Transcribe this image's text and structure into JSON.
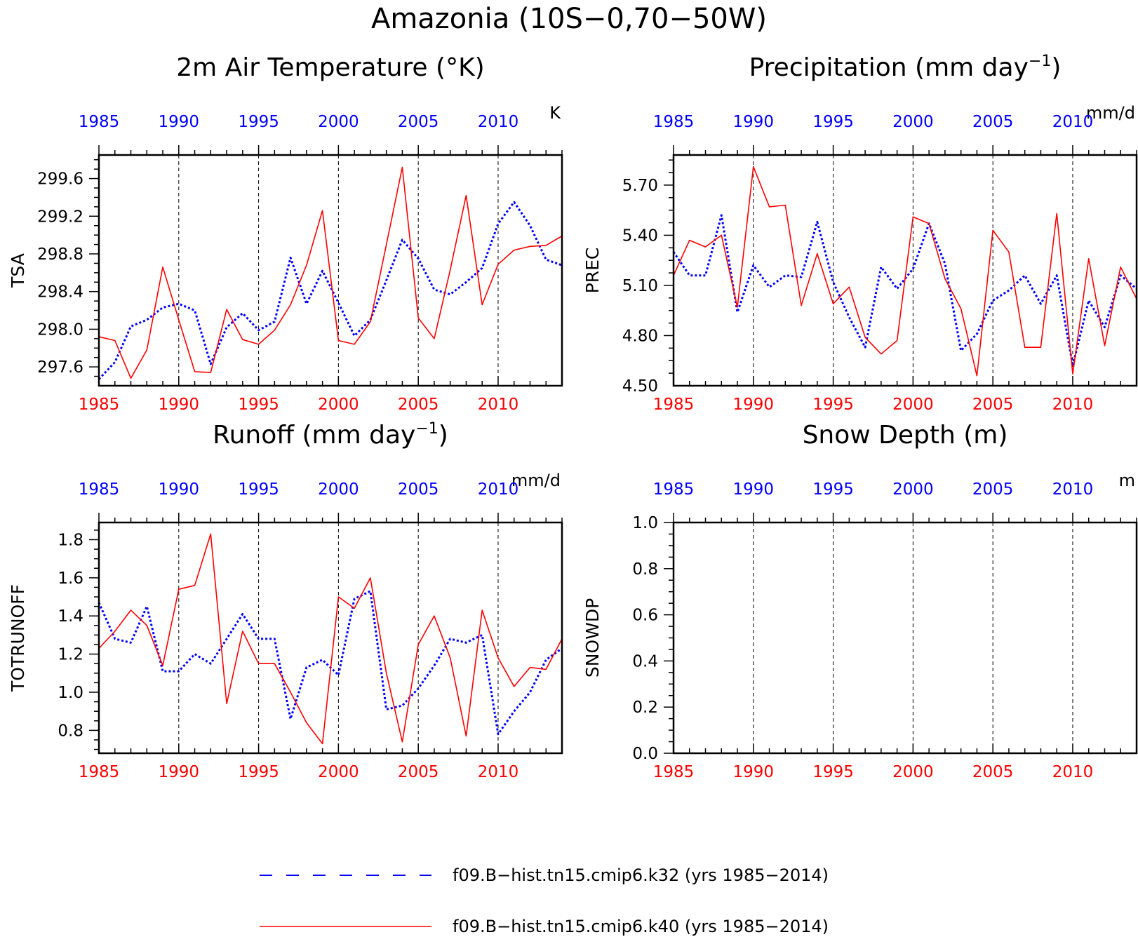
{
  "main_title": "Amazonia (10S−0,70−50W)",
  "colors": {
    "k32": "#0000ff",
    "k40": "#ff0000",
    "axis": "#000000"
  },
  "legend": [
    {
      "label": "f09.B−hist.tn15.cmip6.k32 (yrs 1985−2014)",
      "color": "#0000ff",
      "style": "dashed"
    },
    {
      "label": "f09.B−hist.tn15.cmip6.k40 (yrs 1985−2014)",
      "color": "#ff0000",
      "style": "solid"
    }
  ],
  "chart_data": [
    {
      "type": "line",
      "title": "2m Air Temperature (°K)",
      "ylabel": "TSA",
      "units": "K",
      "xlim": [
        1985,
        2014
      ],
      "ylim": [
        297.4,
        299.85
      ],
      "yticks": [
        297.6,
        298.0,
        298.4,
        298.8,
        299.2,
        299.6
      ],
      "yticklabels": [
        "297.6",
        "298.0",
        "298.4",
        "298.8",
        "299.2",
        "299.6"
      ],
      "xticks": [
        1985,
        1990,
        1995,
        2000,
        2005,
        2010
      ],
      "x": [
        1985,
        1986,
        1987,
        1988,
        1989,
        1990,
        1991,
        1992,
        1993,
        1994,
        1995,
        1996,
        1997,
        1998,
        1999,
        2000,
        2001,
        2002,
        2003,
        2004,
        2005,
        2006,
        2007,
        2008,
        2009,
        2010,
        2011,
        2012,
        2013,
        2014
      ],
      "series": [
        {
          "key": "k32",
          "values": [
            297.47,
            297.65,
            298.03,
            298.1,
            298.23,
            298.27,
            298.2,
            297.63,
            298.02,
            298.17,
            297.99,
            298.08,
            298.76,
            298.27,
            298.62,
            298.28,
            297.93,
            298.1,
            298.52,
            298.95,
            298.75,
            298.42,
            298.37,
            298.5,
            298.65,
            299.12,
            299.35,
            299.1,
            298.74,
            298.68
          ]
        },
        {
          "key": "k40",
          "values": [
            297.92,
            297.88,
            297.48,
            297.78,
            298.66,
            298.1,
            297.55,
            297.54,
            298.21,
            297.89,
            297.84,
            297.99,
            298.26,
            298.68,
            299.26,
            297.88,
            297.84,
            298.08,
            298.9,
            299.72,
            298.12,
            297.9,
            298.63,
            299.42,
            298.26,
            298.69,
            298.84,
            298.88,
            298.89,
            298.99
          ]
        }
      ]
    },
    {
      "type": "line",
      "title": "Precipitation (mm day",
      "title_sup": "−1",
      "title_end": ")",
      "ylabel": "PREC",
      "units": "mm/d",
      "xlim": [
        1985,
        2014
      ],
      "ylim": [
        4.5,
        5.88
      ],
      "yticks": [
        4.5,
        4.8,
        5.1,
        5.4,
        5.7
      ],
      "yticklabels": [
        "4.50",
        "4.80",
        "5.10",
        "5.40",
        "5.70"
      ],
      "xticks": [
        1985,
        1990,
        1995,
        2000,
        2005,
        2010
      ],
      "x": [
        1985,
        1986,
        1987,
        1988,
        1989,
        1990,
        1991,
        1992,
        1993,
        1994,
        1995,
        1996,
        1997,
        1998,
        1999,
        2000,
        2001,
        2002,
        2003,
        2004,
        2005,
        2006,
        2007,
        2008,
        2009,
        2010,
        2011,
        2012,
        2013,
        2014
      ],
      "series": [
        {
          "key": "k32",
          "values": [
            5.3,
            5.16,
            5.16,
            5.52,
            4.94,
            5.22,
            5.09,
            5.16,
            5.15,
            5.48,
            5.12,
            4.91,
            4.73,
            5.21,
            5.08,
            5.2,
            5.47,
            5.23,
            4.71,
            4.81,
            5.01,
            5.07,
            5.16,
            4.99,
            5.16,
            4.62,
            5.01,
            4.85,
            5.16,
            5.08
          ]
        },
        {
          "key": "k40",
          "values": [
            5.16,
            5.37,
            5.33,
            5.4,
            4.97,
            5.81,
            5.57,
            5.58,
            4.98,
            5.29,
            4.99,
            5.09,
            4.79,
            4.69,
            4.77,
            5.51,
            5.47,
            5.14,
            4.96,
            4.56,
            5.43,
            5.3,
            4.73,
            4.73,
            5.53,
            4.57,
            5.26,
            4.74,
            5.21,
            5.02
          ]
        }
      ]
    },
    {
      "type": "line",
      "title": "Runoff (mm day",
      "title_sup": "−1",
      "title_end": ")",
      "ylabel": "TOTRUNOFF",
      "units": "mm/d",
      "xlim": [
        1985,
        2014
      ],
      "ylim": [
        0.68,
        1.89
      ],
      "yticks": [
        0.8,
        1.0,
        1.2,
        1.4,
        1.6,
        1.8
      ],
      "yticklabels": [
        "0.8",
        "1.0",
        "1.2",
        "1.4",
        "1.6",
        "1.8"
      ],
      "xticks": [
        1985,
        1990,
        1995,
        2000,
        2005,
        2010
      ],
      "x": [
        1985,
        1986,
        1987,
        1988,
        1989,
        1990,
        1991,
        1992,
        1993,
        1994,
        1995,
        1996,
        1997,
        1998,
        1999,
        2000,
        2001,
        2002,
        2003,
        2004,
        2005,
        2006,
        2007,
        2008,
        2009,
        2010,
        2011,
        2012,
        2013,
        2014
      ],
      "series": [
        {
          "key": "k32",
          "values": [
            1.47,
            1.28,
            1.26,
            1.45,
            1.11,
            1.11,
            1.2,
            1.15,
            1.28,
            1.41,
            1.28,
            1.28,
            0.86,
            1.13,
            1.17,
            1.09,
            1.49,
            1.53,
            0.91,
            0.93,
            1.02,
            1.14,
            1.28,
            1.26,
            1.3,
            0.78,
            0.9,
            1.0,
            1.17,
            1.23
          ]
        },
        {
          "key": "k40",
          "values": [
            1.23,
            1.32,
            1.43,
            1.35,
            1.14,
            1.54,
            1.56,
            1.83,
            0.94,
            1.32,
            1.15,
            1.15,
            1.0,
            0.84,
            0.73,
            1.5,
            1.44,
            1.6,
            1.1,
            0.74,
            1.25,
            1.4,
            1.18,
            0.77,
            1.43,
            1.18,
            1.03,
            1.13,
            1.12,
            1.28
          ]
        }
      ]
    },
    {
      "type": "line",
      "title": "Snow Depth (m)",
      "ylabel": "SNOWDP",
      "units": "m",
      "xlim": [
        1985,
        2014
      ],
      "ylim": [
        0.0,
        1.0
      ],
      "yticks": [
        0.0,
        0.2,
        0.4,
        0.6,
        0.8,
        1.0
      ],
      "yticklabels": [
        "0.0",
        "0.2",
        "0.4",
        "0.6",
        "0.8",
        "1.0"
      ],
      "xticks": [
        1985,
        1990,
        1995,
        2000,
        2005,
        2010
      ],
      "x": [],
      "series": []
    }
  ]
}
